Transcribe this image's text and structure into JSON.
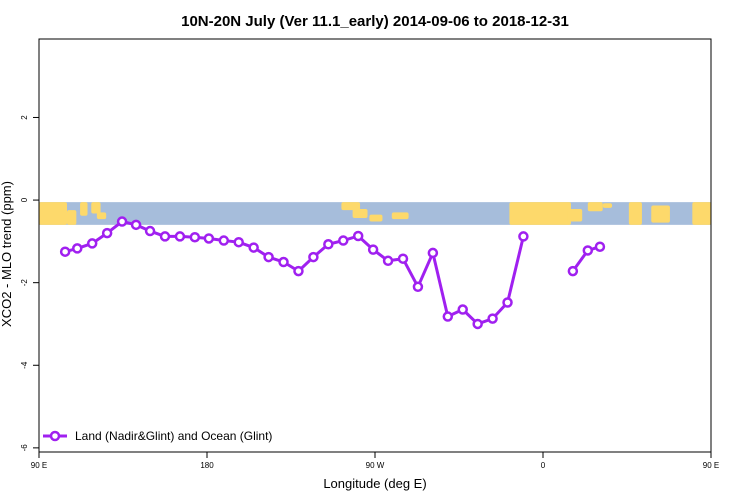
{
  "chart_data": {
    "type": "line",
    "title": "10N-20N July (Ver 11.1_early)   2014-09-06 to 2018-12-31",
    "xlabel": "Longitude (deg E)",
    "ylabel": "XCO2 - MLO trend (ppm)",
    "xlim": [
      90,
      450
    ],
    "ylim": [
      -6.1,
      3.9
    ],
    "xticks": [
      {
        "value": 90,
        "label": "90 E"
      },
      {
        "value": 180,
        "label": "180"
      },
      {
        "value": 270,
        "label": "90 W"
      },
      {
        "value": 360,
        "label": "0"
      },
      {
        "value": 450,
        "label": "90 E"
      }
    ],
    "yticks": [
      {
        "value": 2,
        "label": "2"
      },
      {
        "value": 0,
        "label": "0"
      },
      {
        "value": -2,
        "label": "-2"
      },
      {
        "value": -4,
        "label": "-4"
      },
      {
        "value": -6,
        "label": "-6"
      }
    ],
    "grid": false,
    "legend_position": "bottom-left",
    "map_strip": {
      "y_top": -0.05,
      "y_bottom": -0.6,
      "ocean_color": "#a6bddb",
      "land_color": "#fdd96b"
    },
    "series": [
      {
        "name": "Land (Nadir&Glint) and Ocean (Glint)",
        "color": "#a020f0",
        "segments": [
          {
            "x": [
              104,
              110.5,
              118.5,
              126.5,
              134.5,
              142,
              149.5,
              157.5,
              165.5,
              173.5,
              181,
              189,
              197,
              205,
              213,
              221,
              229,
              237,
              245,
              253,
              261,
              269,
              277,
              285,
              293,
              301,
              309,
              317,
              325,
              333,
              341,
              349.5
            ],
            "y": [
              -1.25,
              -1.17,
              -1.05,
              -0.8,
              -0.52,
              -0.6,
              -0.75,
              -0.88,
              -0.88,
              -0.9,
              -0.93,
              -0.98,
              -1.02,
              -1.15,
              -1.38,
              -1.5,
              -1.72,
              -1.38,
              -1.07,
              -0.98,
              -0.87,
              -1.2,
              -1.47,
              -1.42,
              -2.1,
              -1.28,
              -2.82,
              -2.65,
              -3.0,
              -2.87,
              -2.48,
              -0.88
            ]
          },
          {
            "x": [
              376,
              384,
              390.5
            ],
            "y": [
              -1.72,
              -1.22,
              -1.13
            ]
          }
        ]
      }
    ]
  }
}
